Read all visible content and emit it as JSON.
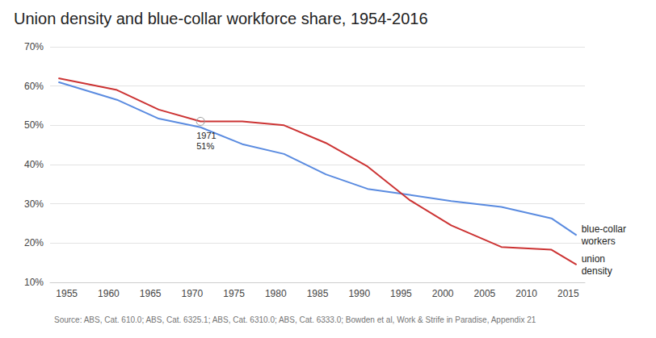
{
  "chart_data": {
    "type": "line",
    "title": "Union density and blue-collar workforce share, 1954-2016",
    "source": "Source: ABS, Cat. 610.0; ABS, Cat. 6325.1; ABS, Cat. 6310.0; ABS, Cat. 6333.0; Bowden et al, Work & Strife in Paradise, Appendix 21",
    "x": [
      1954,
      1961,
      1966,
      1971,
      1976,
      1981,
      1986,
      1991,
      1996,
      2001,
      2007,
      2013,
      2016
    ],
    "series": [
      {
        "name": "blue-collar workers",
        "color": "#5a8be0",
        "values": [
          61,
          56.5,
          51.7,
          49.5,
          45.2,
          42.7,
          37.5,
          33.8,
          32.3,
          30.7,
          29.2,
          26.3,
          22
        ]
      },
      {
        "name": "union density",
        "color": "#cc3333",
        "values": [
          62,
          59,
          54,
          51,
          51,
          50,
          45.5,
          39.5,
          31,
          24.5,
          19,
          18.3,
          14.5
        ]
      }
    ],
    "annotations": [
      {
        "series": "union density",
        "x": 1971,
        "y": 51,
        "text": [
          "1971",
          "51%"
        ]
      }
    ],
    "xlim": [
      1953,
      2017
    ],
    "xticks": [
      1955,
      1960,
      1965,
      1970,
      1975,
      1980,
      1985,
      1990,
      1995,
      2000,
      2005,
      2010,
      2015
    ],
    "ylim": [
      10,
      70
    ],
    "yticks": [
      {
        "value": 10,
        "label": "10%"
      },
      {
        "value": 20,
        "label": "20%"
      },
      {
        "value": 30,
        "label": "30%"
      },
      {
        "value": 40,
        "label": "40%"
      },
      {
        "value": 50,
        "label": "50%"
      },
      {
        "value": 60,
        "label": "60%"
      },
      {
        "value": 70,
        "label": "70%"
      }
    ],
    "grid": true
  }
}
